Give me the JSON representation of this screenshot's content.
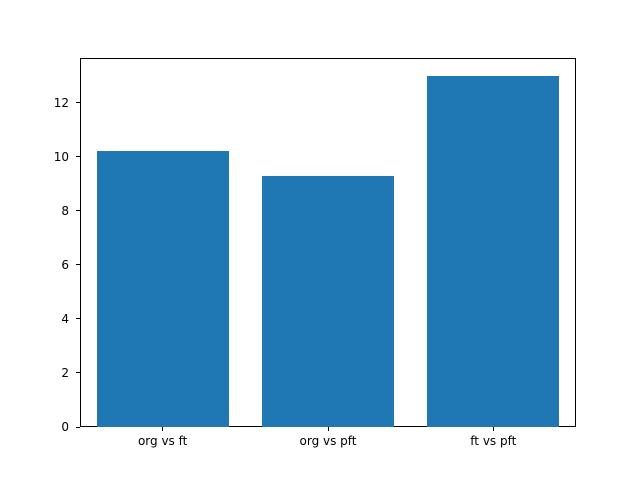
{
  "chart_data": {
    "type": "bar",
    "title": "",
    "xlabel": "",
    "ylabel": "",
    "categories": [
      "org vs ft",
      "org vs pft",
      "ft vs pft"
    ],
    "values": [
      10.2,
      9.3,
      13.0
    ],
    "yticks": [
      0,
      2,
      4,
      6,
      8,
      10,
      12
    ],
    "ylim": [
      0,
      13.65
    ],
    "bar_width_fraction": 0.8,
    "grid": false,
    "legend": null,
    "colors": {
      "bar": "#1f77b4",
      "background": "#ffffff",
      "spine": "#000000",
      "tick_text": "#000000"
    }
  }
}
